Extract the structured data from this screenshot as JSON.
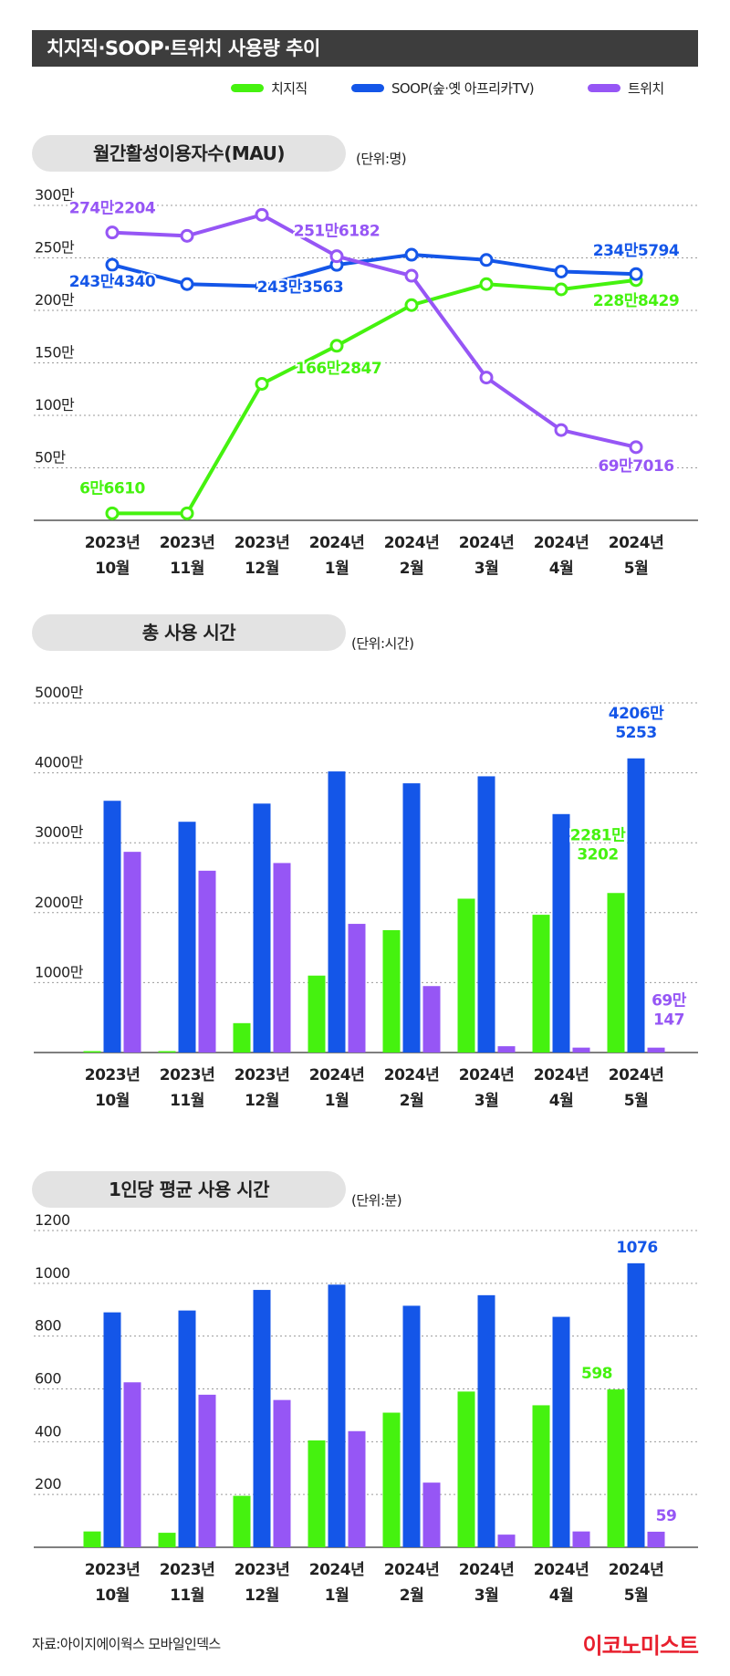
{
  "title": "치지직·SOOP·트위치 사용량 추이",
  "legend": [
    {
      "name": "치지직",
      "color": "#45f20f"
    },
    {
      "name": "SOOP(숲·옛 아프리카TV)",
      "color": "#1456e8"
    },
    {
      "name": "트위치",
      "color": "#9656f5"
    }
  ],
  "colors": {
    "chzzk": "#45f20f",
    "soop": "#1456e8",
    "twitch": "#9656f5",
    "axis": "#555555",
    "grid": "#9a9a9a",
    "pill": "#e3e3e3",
    "banner": "#3d3d3d",
    "logo": "#e8202e"
  },
  "sections": [
    {
      "title": "월간활성이용자수(MAU)",
      "unit": "(단위:명)"
    },
    {
      "title": "총 사용 시간",
      "unit": "(단위:시간)"
    },
    {
      "title": "1인당 평균 사용 시간",
      "unit": "(단위:분)"
    }
  ],
  "chart_data": [
    {
      "type": "line",
      "title": "월간활성이용자수(MAU)",
      "unit": "(단위:명)",
      "categories": [
        [
          "2023년",
          "10월"
        ],
        [
          "2023년",
          "11월"
        ],
        [
          "2023년",
          "12월"
        ],
        [
          "2024년",
          "1월"
        ],
        [
          "2024년",
          "2월"
        ],
        [
          "2024년",
          "3월"
        ],
        [
          "2024년",
          "4월"
        ],
        [
          "2024년",
          "5월"
        ]
      ],
      "ylim": [
        0,
        3000000
      ],
      "yticks": [
        500000,
        1000000,
        1500000,
        2000000,
        2500000,
        3000000
      ],
      "yticklabels": [
        "50만",
        "100만",
        "150만",
        "200만",
        "250만",
        "300만"
      ],
      "grid": true,
      "series": [
        {
          "name": "치지직",
          "color": "#45f20f",
          "values": [
            66610,
            66610,
            1300000,
            1662847,
            2050000,
            2250000,
            2200000,
            2288429
          ]
        },
        {
          "name": "SOOP(숲·옛 아프리카TV)",
          "color": "#1456e8",
          "values": [
            2434340,
            2250000,
            2230000,
            2433563,
            2530000,
            2480000,
            2370000,
            2345794
          ]
        },
        {
          "name": "트위치",
          "color": "#9656f5",
          "values": [
            2742204,
            2710000,
            2910000,
            2516182,
            2330000,
            1360000,
            860000,
            697016
          ]
        }
      ],
      "annotations": [
        {
          "series": 0,
          "index": 0,
          "text": "6만6610"
        },
        {
          "series": 0,
          "index": 3,
          "text": "166만2847"
        },
        {
          "series": 0,
          "index": 7,
          "text": "228만8429"
        },
        {
          "series": 1,
          "index": 0,
          "text": "243만4340"
        },
        {
          "series": 1,
          "index": 3,
          "text": "243만3563"
        },
        {
          "series": 1,
          "index": 7,
          "text": "234만5794"
        },
        {
          "series": 2,
          "index": 0,
          "text": "274만2204"
        },
        {
          "series": 2,
          "index": 3,
          "text": "251만6182"
        },
        {
          "series": 2,
          "index": 7,
          "text": "69만7016"
        }
      ]
    },
    {
      "type": "bar",
      "title": "총 사용 시간",
      "unit": "(단위:시간)",
      "categories": [
        [
          "2023년",
          "10월"
        ],
        [
          "2023년",
          "11월"
        ],
        [
          "2023년",
          "12월"
        ],
        [
          "2024년",
          "1월"
        ],
        [
          "2024년",
          "2월"
        ],
        [
          "2024년",
          "3월"
        ],
        [
          "2024년",
          "4월"
        ],
        [
          "2024년",
          "5월"
        ]
      ],
      "ylim": [
        0,
        50000000
      ],
      "yticks": [
        10000000,
        20000000,
        30000000,
        40000000,
        50000000
      ],
      "yticklabels": [
        "1000만",
        "2000만",
        "3000만",
        "4000만",
        "5000만"
      ],
      "grid": true,
      "series": [
        {
          "name": "치지직",
          "color": "#45f20f",
          "values": [
            200000,
            200000,
            4200000,
            11000000,
            17500000,
            22000000,
            19700000,
            22813202
          ]
        },
        {
          "name": "SOOP(숲·옛 아프리카TV)",
          "color": "#1456e8",
          "values": [
            36000000,
            33000000,
            35600000,
            40200000,
            38500000,
            39500000,
            34100000,
            42065253
          ]
        },
        {
          "name": "트위치",
          "color": "#9656f5",
          "values": [
            28700000,
            26000000,
            27100000,
            18400000,
            9500000,
            900000,
            700000,
            697147
          ]
        }
      ],
      "annotations": [
        {
          "series": 0,
          "index": 7,
          "lines": [
            "2281만",
            "3202"
          ]
        },
        {
          "series": 1,
          "index": 7,
          "lines": [
            "4206만",
            "5253"
          ]
        },
        {
          "series": 2,
          "index": 7,
          "lines": [
            "69만",
            "147"
          ]
        }
      ]
    },
    {
      "type": "bar",
      "title": "1인당 평균 사용 시간",
      "unit": "(단위:분)",
      "categories": [
        [
          "2023년",
          "10월"
        ],
        [
          "2023년",
          "11월"
        ],
        [
          "2023년",
          "12월"
        ],
        [
          "2024년",
          "1월"
        ],
        [
          "2024년",
          "2월"
        ],
        [
          "2024년",
          "3월"
        ],
        [
          "2024년",
          "4월"
        ],
        [
          "2024년",
          "5월"
        ]
      ],
      "ylim": [
        0,
        1200
      ],
      "yticks": [
        200,
        400,
        600,
        800,
        1000,
        1200
      ],
      "yticklabels": [
        "200",
        "400",
        "600",
        "800",
        "1000",
        "1200"
      ],
      "grid": true,
      "series": [
        {
          "name": "치지직",
          "color": "#45f20f",
          "values": [
            60,
            55,
            195,
            405,
            510,
            590,
            538,
            598
          ]
        },
        {
          "name": "SOOP(숲·옛 아프리카TV)",
          "color": "#1456e8",
          "values": [
            890,
            897,
            975,
            995,
            915,
            955,
            873,
            1076
          ]
        },
        {
          "name": "트위치",
          "color": "#9656f5",
          "values": [
            625,
            578,
            558,
            440,
            245,
            48,
            60,
            59
          ]
        }
      ],
      "annotations": [
        {
          "series": 0,
          "index": 7,
          "lines": [
            "598"
          ]
        },
        {
          "series": 1,
          "index": 7,
          "lines": [
            "1076"
          ]
        },
        {
          "series": 2,
          "index": 7,
          "lines": [
            "59"
          ]
        }
      ]
    }
  ],
  "source": "자료:아이지에이웍스 모바일인덱스",
  "logo": "이코노미스트"
}
